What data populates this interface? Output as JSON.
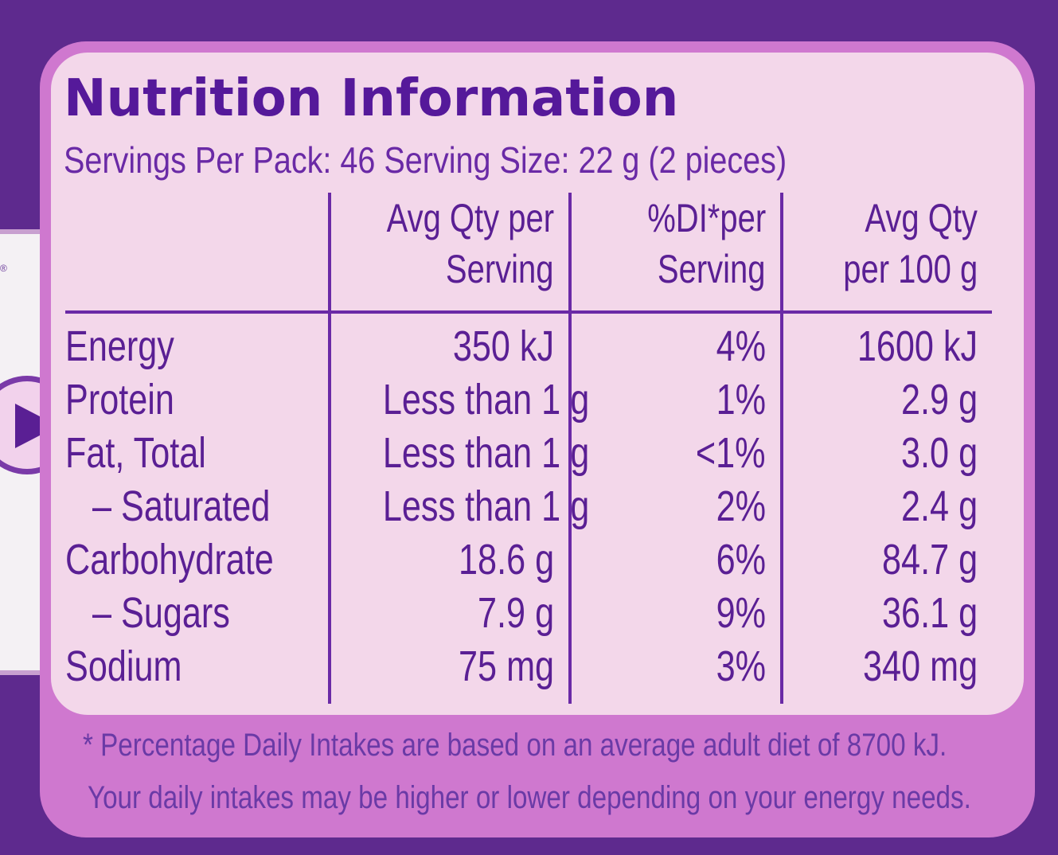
{
  "label": {
    "title": "Nutrition Information",
    "servings_line": "Servings Per Pack: 46  Serving Size: 22 g (2 pieces)",
    "registered_mark": "®",
    "columns": [
      {
        "line1": "",
        "line2": ""
      },
      {
        "line1": "Avg Qty per",
        "line2": "Serving"
      },
      {
        "line1": "%DI*per",
        "line2": "Serving"
      },
      {
        "line1": "Avg Qty",
        "line2": "per 100 g"
      }
    ],
    "rows": [
      {
        "name": "Energy",
        "per_serving": "350 kJ",
        "di": "4%",
        "per_100g": "1600 kJ"
      },
      {
        "name": "Protein",
        "per_serving": "Less than 1 g",
        "di": "1%",
        "per_100g": "2.9 g"
      },
      {
        "name": "Fat, Total",
        "per_serving": "Less than 1 g",
        "di": "<1%",
        "per_100g": "3.0 g"
      },
      {
        "name": "– Saturated",
        "per_serving": "Less than 1 g",
        "di": "2%",
        "per_100g": "2.4 g"
      },
      {
        "name": "Carbohydrate",
        "per_serving": "18.6 g",
        "di": "6%",
        "per_100g": "84.7 g"
      },
      {
        "name": "– Sugars",
        "per_serving": "7.9 g",
        "di": "9%",
        "per_100g": "36.1 g"
      },
      {
        "name": "Sodium",
        "per_serving": "75 mg",
        "di": "3%",
        "per_100g": "340 mg"
      }
    ],
    "footnote_1": "* Percentage Daily Intakes are based on an average adult diet of 8700 kJ.",
    "footnote_2": "Your daily intakes may be higher or lower depending on your energy needs."
  },
  "icons": {
    "arrow": "play-arrow-icon"
  },
  "colors": {
    "background": "#5e2a8e",
    "panel_border": "#cf78cf",
    "panel_fill": "#f3d7ea",
    "text": "#5a1f94"
  }
}
